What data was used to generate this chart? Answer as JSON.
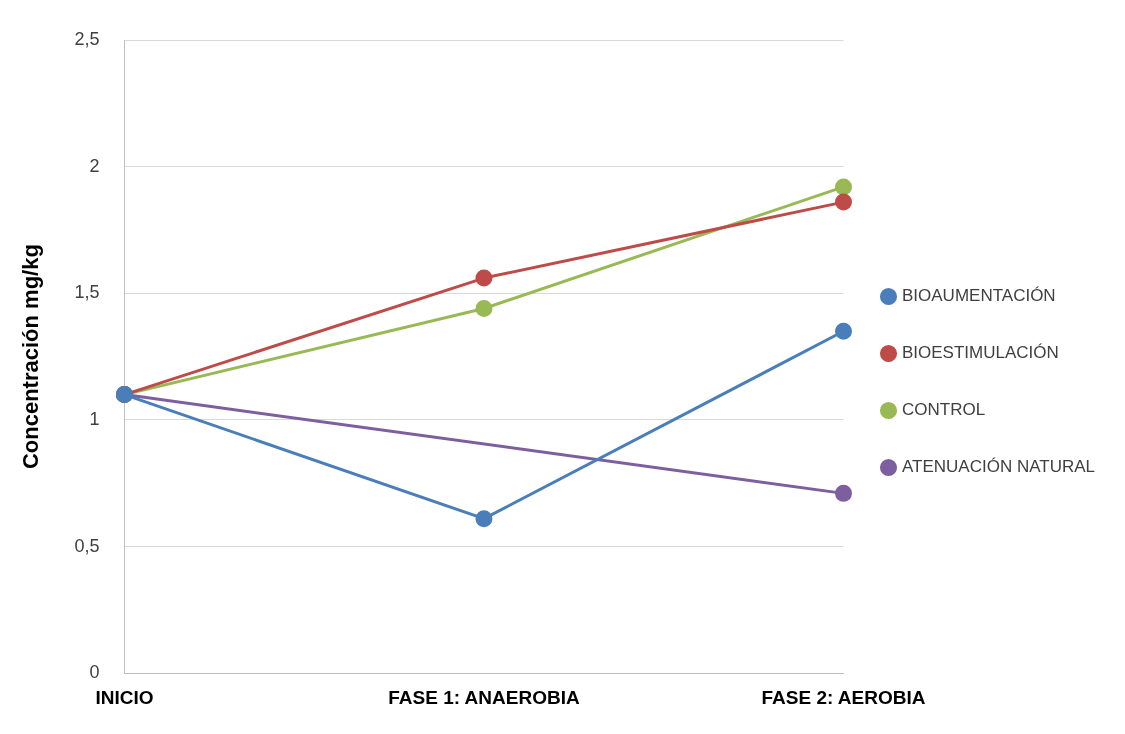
{
  "chart_data": {
    "type": "line",
    "ylabel": "Concentración mg/kg",
    "categories": [
      "INICIO",
      "FASE 1: ANAEROBIA",
      "FASE 2: AEROBIA"
    ],
    "series": [
      {
        "name": "BIOAUMENTACIÓN",
        "color": "#4a7ebb",
        "values": [
          1.1,
          0.61,
          1.35
        ]
      },
      {
        "name": "BIOESTIMULACIÓN",
        "color": "#be4b48",
        "values": [
          1.1,
          1.56,
          1.86
        ]
      },
      {
        "name": "CONTROL",
        "color": "#98b954",
        "values": [
          1.1,
          1.44,
          1.92
        ]
      },
      {
        "name": "ATENUACIÓN NATURAL",
        "color": "#7d5fa0",
        "values": [
          1.1,
          null,
          0.71
        ]
      }
    ],
    "ylim": [
      0,
      2.5
    ],
    "yticks": [
      {
        "value": 0,
        "label": "0"
      },
      {
        "value": 0.5,
        "label": "0,5"
      },
      {
        "value": 1,
        "label": "1"
      },
      {
        "value": 1.5,
        "label": "1,5"
      },
      {
        "value": 2,
        "label": "2"
      },
      {
        "value": 2.5,
        "label": "2,5"
      }
    ],
    "grid": "y",
    "legend": "right",
    "marker": "circle",
    "line_style": "solid"
  }
}
